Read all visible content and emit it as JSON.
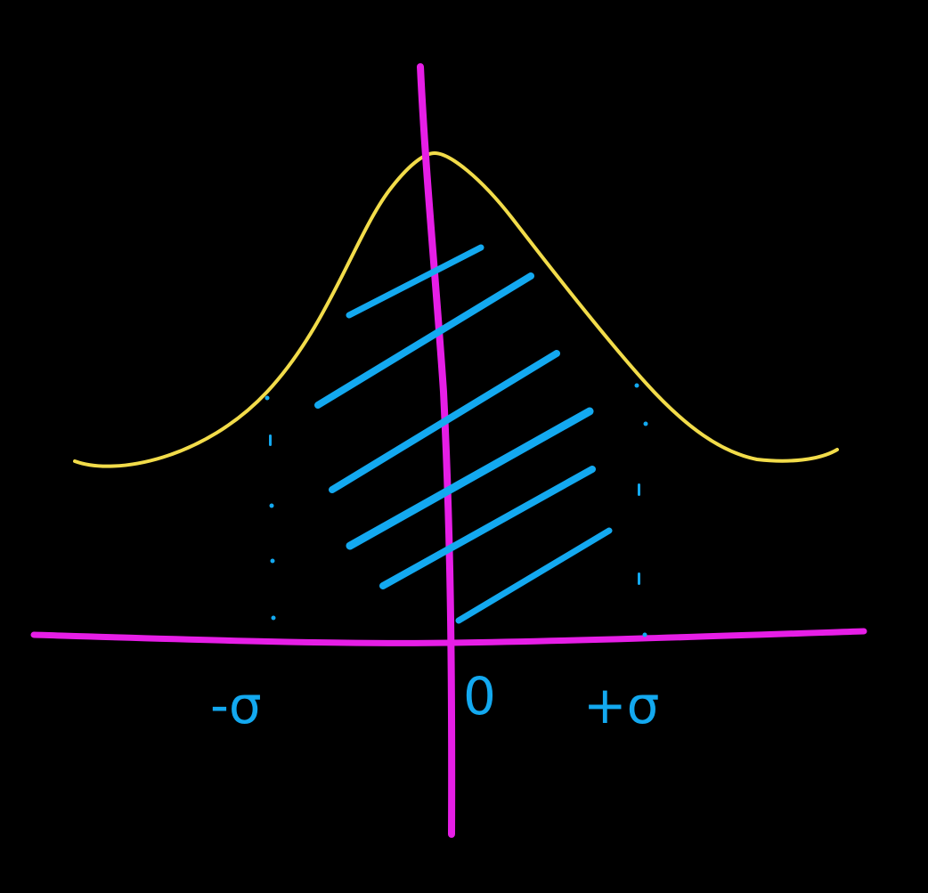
{
  "colors": {
    "background": "#000000",
    "axes": "#e61ee6",
    "curve": "#f2dc4a",
    "shading": "#13a9f0",
    "guides": "#13a9f0",
    "labels": "#13a9f0"
  },
  "labels": {
    "minus_sigma": "-σ",
    "zero": "0",
    "plus_sigma": "+σ"
  },
  "shaded_region": {
    "from": "-σ",
    "to": "+σ"
  }
}
